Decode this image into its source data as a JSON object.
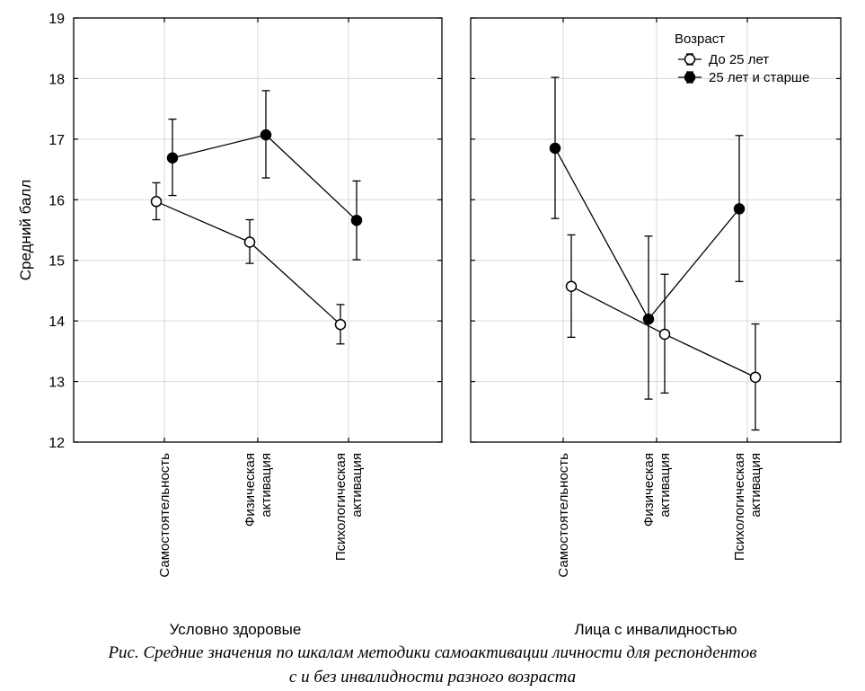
{
  "chart_data": [
    {
      "type": "line",
      "title": "Условно здоровые",
      "ylabel": "Средний балл",
      "ylim": [
        12,
        19
      ],
      "yticks": [
        "12",
        "13",
        "14",
        "15",
        "16",
        "17",
        "18",
        "19"
      ],
      "categories": [
        [
          "Самостоятельность"
        ],
        [
          "Физическая",
          "активация"
        ],
        [
          "Психологическая",
          "активация"
        ]
      ],
      "grid": true,
      "series": [
        {
          "name": "До 25 лет",
          "marker": "open-circle",
          "values": [
            15.97,
            15.3,
            13.94
          ],
          "error_low": [
            15.67,
            14.95,
            13.62
          ],
          "error_high": [
            16.28,
            15.67,
            14.27
          ]
        },
        {
          "name": "25 лет и старше",
          "marker": "filled-circle",
          "values": [
            16.69,
            17.07,
            15.66
          ],
          "error_low": [
            16.07,
            16.36,
            15.01
          ],
          "error_high": [
            17.33,
            17.8,
            16.31
          ]
        }
      ]
    },
    {
      "type": "line",
      "title": "Лица с инвалидностью",
      "ylim": [
        12,
        19
      ],
      "categories": [
        [
          "Самостоятельность"
        ],
        [
          "Физическая",
          "активация"
        ],
        [
          "Психологическая",
          "активация"
        ]
      ],
      "grid": true,
      "legend": {
        "title": "Возраст",
        "position": "top-right",
        "entries": [
          "До 25 лет",
          "25 лет и старше"
        ]
      },
      "series": [
        {
          "name": "До 25 лет",
          "marker": "open-circle",
          "values": [
            14.57,
            13.78,
            13.07
          ],
          "error_low": [
            13.73,
            12.81,
            12.2
          ],
          "error_high": [
            15.42,
            14.77,
            13.95
          ]
        },
        {
          "name": "25 лет и старше",
          "marker": "filled-circle",
          "values": [
            16.85,
            14.03,
            15.85
          ],
          "error_low": [
            15.69,
            12.71,
            14.65
          ],
          "error_high": [
            18.02,
            15.4,
            17.06
          ]
        }
      ]
    }
  ],
  "caption": {
    "line1": "Рис. Средние значения по шкалам методики самоактивации личности для респондентов",
    "line2": "с и без инвалидности разного возраста"
  }
}
